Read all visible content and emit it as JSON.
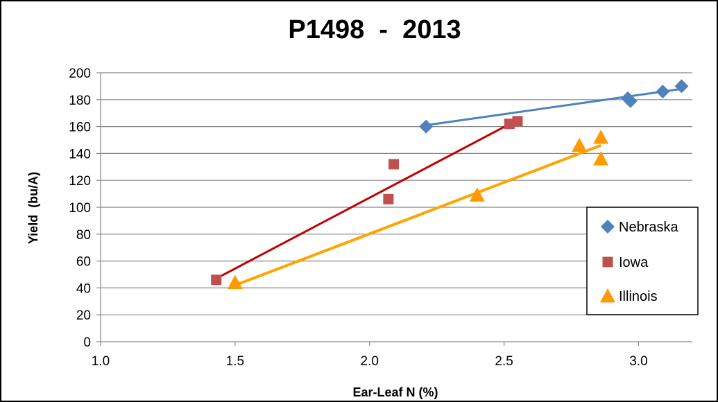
{
  "chart_data": {
    "type": "scatter",
    "title": "P1498  -  2013",
    "xlabel": "Ear-Leaf N (%)",
    "ylabel": "Yield  (bu/A)",
    "xlim": [
      1.0,
      3.2
    ],
    "ylim": [
      0,
      200
    ],
    "x_ticks": [
      "1.0",
      "1.5",
      "2.0",
      "2.5",
      "3.0"
    ],
    "y_ticks": [
      "0",
      "20",
      "40",
      "60",
      "80",
      "100",
      "120",
      "140",
      "160",
      "180",
      "200"
    ],
    "grid": "horizontal",
    "legend_position": "right",
    "series": [
      {
        "name": "Nebraska",
        "marker": "diamond",
        "color": "#4F81BD",
        "points": [
          [
            2.21,
            160
          ],
          [
            2.96,
            181
          ],
          [
            2.97,
            179
          ],
          [
            3.09,
            186
          ],
          [
            3.16,
            190
          ]
        ],
        "trendline": [
          [
            2.21,
            161
          ],
          [
            3.16,
            188
          ]
        ]
      },
      {
        "name": "Iowa",
        "marker": "square",
        "color": "#C0504D",
        "trend_color": "#C00000",
        "points": [
          [
            1.43,
            46
          ],
          [
            2.07,
            106
          ],
          [
            2.09,
            132
          ],
          [
            2.52,
            162
          ],
          [
            2.55,
            164
          ]
        ],
        "trendline": [
          [
            1.43,
            47
          ],
          [
            2.55,
            165
          ]
        ]
      },
      {
        "name": "Illinois",
        "marker": "triangle",
        "color": "#FF9900",
        "trend_color": "#FFA500",
        "points": [
          [
            1.5,
            44
          ],
          [
            2.4,
            109
          ],
          [
            2.78,
            146
          ],
          [
            2.86,
            152
          ],
          [
            2.86,
            136
          ]
        ],
        "trendline": [
          [
            1.5,
            42
          ],
          [
            2.86,
            146
          ]
        ]
      }
    ]
  }
}
